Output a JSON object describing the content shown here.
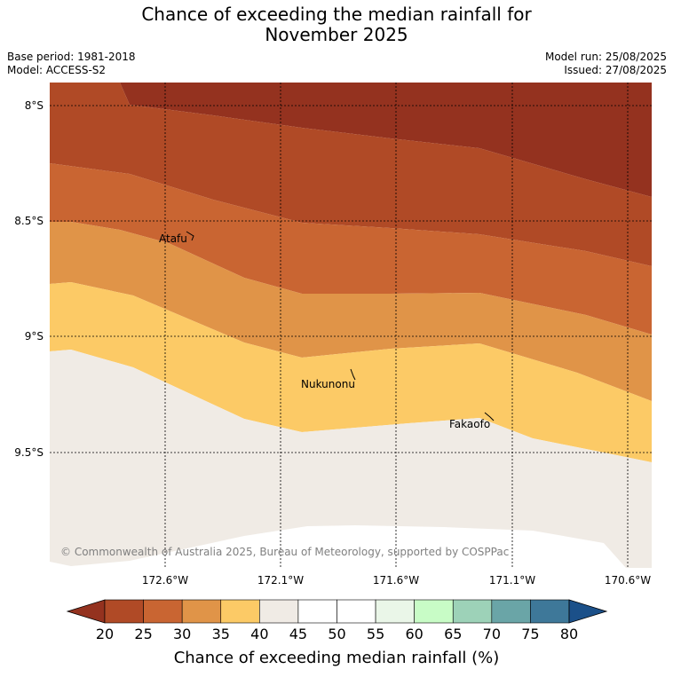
{
  "title": {
    "line1": "Chance of exceeding the median rainfall for",
    "line2": "November 2025"
  },
  "info": {
    "base_period": "Base period: 1981-2018",
    "model": "Model: ACCESS-S2",
    "model_run": "Model run: 25/08/2025",
    "issued": "Issued: 27/08/2025"
  },
  "map": {
    "lat_labels": [
      "8°S",
      "8.5°S",
      "9°S",
      "9.5°S"
    ],
    "lon_labels": [
      "172.6°W",
      "172.1°W",
      "171.6°W",
      "171.1°W",
      "170.6°W"
    ],
    "places": [
      {
        "name": "Atafu"
      },
      {
        "name": "Nukunonu"
      },
      {
        "name": "Fakaofo"
      }
    ],
    "copyright": "© Commonwealth of Australia 2025, Bureau of Meteorology, supported by COSPPac",
    "band_colors": {
      "below_20": "#94321f",
      "20_25": "#b04a26",
      "25_30": "#c96532",
      "30_35": "#e09448",
      "35_40": "#fcca66",
      "40_45": "#f0ebe5",
      "outside": "#ffffff"
    }
  },
  "colorbar": {
    "ticks": [
      "20",
      "25",
      "30",
      "35",
      "40",
      "45",
      "50",
      "55",
      "60",
      "65",
      "70",
      "75",
      "80"
    ],
    "colors": [
      "#b04a26",
      "#c96532",
      "#e09448",
      "#fcca66",
      "#f0ebe5",
      "#ffffff",
      "#ffffff",
      "#eaf6e8",
      "#c8fcc6",
      "#9dd2b8",
      "#6aa5a7",
      "#3e7899"
    ],
    "low_extend_color": "#94321f",
    "high_extend_color": "#1b5089",
    "label": "Chance of exceeding median rainfall (%)"
  }
}
